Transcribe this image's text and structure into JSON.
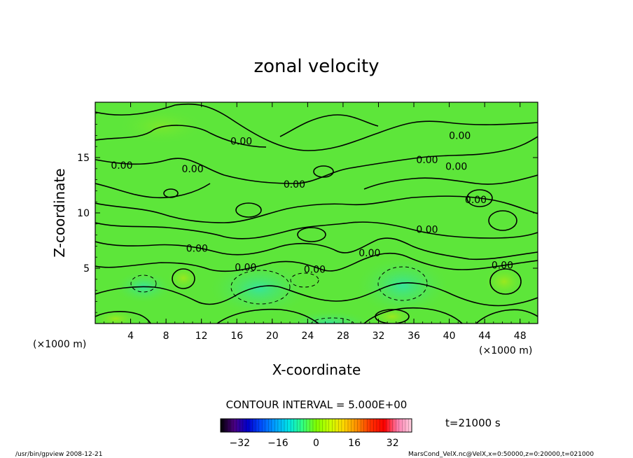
{
  "chart_data": {
    "type": "heatmap",
    "title": "zonal velocity",
    "xlabel": "X-coordinate",
    "ylabel": "Z-coordinate",
    "x_unit": "(×1000 m)",
    "z_unit": "(×1000 m)",
    "xlim": [
      0,
      50
    ],
    "ylim": [
      0,
      20
    ],
    "x_ticks": [
      4,
      8,
      12,
      16,
      20,
      24,
      28,
      32,
      36,
      40,
      44,
      48
    ],
    "y_ticks": [
      5,
      10,
      15
    ],
    "contour_interval_text": "CONTOUR INTERVAL = 5.000E+00",
    "contour_labels": [
      {
        "text": "0.00",
        "x": 16.5,
        "z": 16.5
      },
      {
        "text": "0.00",
        "x": 3.0,
        "z": 14.3
      },
      {
        "text": "0.00",
        "x": 11.0,
        "z": 14.0
      },
      {
        "text": "0.00",
        "x": 22.5,
        "z": 12.6
      },
      {
        "text": "0.00",
        "x": 41.2,
        "z": 17.0
      },
      {
        "text": "0.00",
        "x": 37.5,
        "z": 14.8
      },
      {
        "text": "0.00",
        "x": 40.8,
        "z": 14.2
      },
      {
        "text": "0.00",
        "x": 43.0,
        "z": 11.2
      },
      {
        "text": "0.00",
        "x": 37.5,
        "z": 8.5
      },
      {
        "text": "0.00",
        "x": 11.5,
        "z": 6.8
      },
      {
        "text": "0.00",
        "x": 17.0,
        "z": 5.1
      },
      {
        "text": "0.00",
        "x": 24.8,
        "z": 4.9
      },
      {
        "text": "0.00",
        "x": 31.0,
        "z": 6.4
      },
      {
        "text": "0.00",
        "x": 46.0,
        "z": 5.3
      }
    ],
    "colorbar": {
      "range": [
        -40,
        40
      ],
      "ticks": [
        -32,
        -16,
        0,
        16,
        32
      ],
      "colors": [
        "#000000",
        "#4b0082",
        "#0000cd",
        "#0050ff",
        "#00a0ff",
        "#00e5e5",
        "#30ff80",
        "#7fff00",
        "#c8ff00",
        "#ffd700",
        "#ff8c00",
        "#ff3000",
        "#ff0000",
        "#ff80b0",
        "#ffd0e0"
      ]
    },
    "time_label": "t=21000 s",
    "colors": {
      "background_field": "#5de63a",
      "contour_line": "#000000"
    }
  },
  "footer": {
    "left": "/usr/bin/gpview   2008-12-21",
    "right": "MarsCond_VelX.nc@VelX,x=0:50000,z=0:20000,t=021000"
  }
}
